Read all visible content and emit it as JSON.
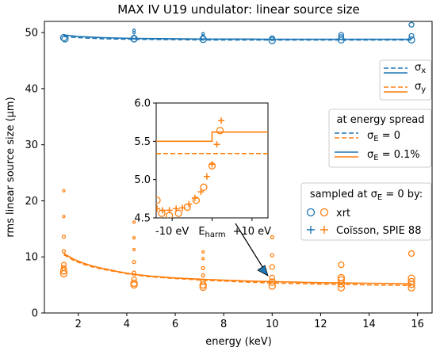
{
  "chart_data": {
    "type": "scatter",
    "title": "MAX IV U19 undulator: linear source size",
    "xlabel": "energy (keV)",
    "ylabel": "rms linear source size (μm)",
    "xlim": [
      0.6,
      16.6
    ],
    "ylim": [
      0,
      52
    ],
    "xticks": [
      2,
      4,
      6,
      8,
      10,
      12,
      14,
      16
    ],
    "yticks": [
      0,
      10,
      20,
      30,
      40,
      50
    ],
    "x_tick_labels": [
      "2",
      "4",
      "6",
      "8",
      "10",
      "12",
      "14",
      "16"
    ],
    "y_tick_labels": [
      "0",
      "10",
      "20",
      "30",
      "40",
      "50"
    ],
    "colors": {
      "sigma_x": "#1f77b4",
      "sigma_y": "#ff7f0e"
    },
    "energies_keV": [
      1.4,
      4.3,
      7.15,
      10.0,
      12.85,
      15.75
    ],
    "sigma_x_curve": {
      "x": [
        1.4,
        2.0,
        3.0,
        4.3,
        6.0,
        7.15,
        9.0,
        10.0,
        12.0,
        12.85,
        14.5,
        15.75
      ],
      "spread_0": [
        49.3,
        49.1,
        48.9,
        48.8,
        48.75,
        48.7,
        48.7,
        48.7,
        48.7,
        48.7,
        48.7,
        48.7
      ],
      "spread_0_1": [
        49.6,
        49.3,
        49.1,
        48.95,
        48.9,
        48.85,
        48.85,
        48.8,
        48.8,
        48.8,
        48.8,
        48.8
      ]
    },
    "sigma_y_curve": {
      "x": [
        1.4,
        1.8,
        2.2,
        2.6,
        3.0,
        3.5,
        4.0,
        4.3,
        5.0,
        5.5,
        6.0,
        7.15,
        8.0,
        9.0,
        10.0,
        11.0,
        12.0,
        12.85,
        14.0,
        15.0,
        15.75
      ],
      "spread_0": [
        10.4,
        9.4,
        8.7,
        8.2,
        7.8,
        7.4,
        7.0,
        6.8,
        6.45,
        6.3,
        6.15,
        5.85,
        5.7,
        5.5,
        5.35,
        5.25,
        5.15,
        5.1,
        5.0,
        4.95,
        4.9
      ],
      "spread_0_1": [
        10.6,
        9.6,
        8.9,
        8.35,
        7.95,
        7.5,
        7.1,
        6.9,
        6.55,
        6.4,
        6.25,
        6.0,
        5.85,
        5.7,
        5.6,
        5.5,
        5.4,
        5.35,
        5.3,
        5.25,
        5.2
      ]
    },
    "xrt_sigma_x_points": [
      {
        "x": 1.4,
        "y": 49.1,
        "r": 4
      },
      {
        "x": 1.45,
        "y": 48.9,
        "r": 4
      },
      {
        "x": 4.3,
        "y": 48.9,
        "r": 4
      },
      {
        "x": 4.3,
        "y": 49.2,
        "r": 2.5
      },
      {
        "x": 4.3,
        "y": 50.0,
        "r": 1.5
      },
      {
        "x": 4.3,
        "y": 50.4,
        "r": 1.5
      },
      {
        "x": 7.15,
        "y": 48.8,
        "r": 4
      },
      {
        "x": 7.15,
        "y": 49.2,
        "r": 2.5
      },
      {
        "x": 7.15,
        "y": 49.8,
        "r": 1.5
      },
      {
        "x": 10.0,
        "y": 48.6,
        "r": 4
      },
      {
        "x": 10.0,
        "y": 49.0,
        "r": 3
      },
      {
        "x": 12.85,
        "y": 48.7,
        "r": 4
      },
      {
        "x": 12.85,
        "y": 49.2,
        "r": 3
      },
      {
        "x": 12.85,
        "y": 49.6,
        "r": 3
      },
      {
        "x": 15.75,
        "y": 48.7,
        "r": 4
      },
      {
        "x": 15.75,
        "y": 49.4,
        "r": 3
      },
      {
        "x": 15.75,
        "y": 51.4,
        "r": 3
      }
    ],
    "xrt_sigma_y_points": [
      {
        "x": 1.4,
        "y": 21.8,
        "r": 1.5
      },
      {
        "x": 1.4,
        "y": 17.2,
        "r": 1.5
      },
      {
        "x": 1.4,
        "y": 13.6,
        "r": 2
      },
      {
        "x": 1.4,
        "y": 11.0,
        "r": 2
      },
      {
        "x": 1.4,
        "y": 8.6,
        "r": 3
      },
      {
        "x": 1.4,
        "y": 8.0,
        "r": 3
      },
      {
        "x": 1.4,
        "y": 7.5,
        "r": 4
      },
      {
        "x": 1.4,
        "y": 7.0,
        "r": 4
      },
      {
        "x": 4.3,
        "y": 16.2,
        "r": 1.5
      },
      {
        "x": 4.3,
        "y": 13.4,
        "r": 1.5
      },
      {
        "x": 4.3,
        "y": 11.3,
        "r": 1.5
      },
      {
        "x": 4.3,
        "y": 9.1,
        "r": 2
      },
      {
        "x": 4.3,
        "y": 7.2,
        "r": 2
      },
      {
        "x": 4.3,
        "y": 6.0,
        "r": 3
      },
      {
        "x": 4.3,
        "y": 5.3,
        "r": 4
      },
      {
        "x": 4.3,
        "y": 5.0,
        "r": 4
      },
      {
        "x": 7.15,
        "y": 10.9,
        "r": 1.5
      },
      {
        "x": 7.15,
        "y": 9.7,
        "r": 1.5
      },
      {
        "x": 7.15,
        "y": 8.0,
        "r": 2
      },
      {
        "x": 7.15,
        "y": 6.7,
        "r": 2
      },
      {
        "x": 7.15,
        "y": 5.6,
        "r": 3
      },
      {
        "x": 7.15,
        "y": 5.0,
        "r": 4
      },
      {
        "x": 7.15,
        "y": 4.6,
        "r": 4
      },
      {
        "x": 10.0,
        "y": 13.5,
        "r": 2
      },
      {
        "x": 10.0,
        "y": 10.3,
        "r": 2
      },
      {
        "x": 10.0,
        "y": 8.2,
        "r": 3
      },
      {
        "x": 10.0,
        "y": 6.3,
        "r": 3
      },
      {
        "x": 10.0,
        "y": 5.5,
        "r": 4
      },
      {
        "x": 10.0,
        "y": 4.8,
        "r": 4
      },
      {
        "x": 12.85,
        "y": 8.6,
        "r": 3.5
      },
      {
        "x": 12.85,
        "y": 6.3,
        "r": 4
      },
      {
        "x": 12.85,
        "y": 5.9,
        "r": 4
      },
      {
        "x": 12.85,
        "y": 5.2,
        "r": 4
      },
      {
        "x": 12.85,
        "y": 4.5,
        "r": 4
      },
      {
        "x": 15.75,
        "y": 10.6,
        "r": 3.5
      },
      {
        "x": 15.75,
        "y": 6.2,
        "r": 4
      },
      {
        "x": 15.75,
        "y": 5.6,
        "r": 4
      },
      {
        "x": 15.75,
        "y": 5.1,
        "r": 4
      },
      {
        "x": 15.75,
        "y": 4.5,
        "r": 4
      }
    ],
    "legend": {
      "series": [
        {
          "label": "σ",
          "sub": "x",
          "color": "#1f77b4"
        },
        {
          "label": "σ",
          "sub": "y",
          "color": "#ff7f0e"
        }
      ],
      "energy_spread_title": "at energy spread",
      "energy_spread_entries": [
        {
          "text": "σ",
          "sub": "E",
          "suffix": " = 0",
          "style": "dashed"
        },
        {
          "text": "σ",
          "sub": "E",
          "suffix": " = 0.1%",
          "style": "solid"
        }
      ],
      "sampled_title": "sampled at σ",
      "sampled_title_sub": "E",
      "sampled_title_suffix": " = 0 by:",
      "sampled_entries": [
        {
          "text": "xrt",
          "marker": "circle"
        },
        {
          "text": "Coïsson, SPIE 88",
          "marker": "plus"
        }
      ]
    },
    "inset": {
      "ylim": [
        4.5,
        6.0
      ],
      "xlim": [
        -14,
        14
      ],
      "yticks": [
        4.5,
        5.0,
        5.5,
        6.0
      ],
      "y_tick_labels": [
        "4.5",
        "5.0",
        "5.5",
        "6.0"
      ],
      "x_tick_labels": [
        "-10 eV",
        "E",
        "+10 eV"
      ],
      "x_tick_center_sub": "harm",
      "xticks": [
        -10,
        0,
        10
      ],
      "line_spread_0": 5.34,
      "line_spread_0_1_low": 5.5,
      "line_spread_0_1_high": 5.62,
      "line_step_x": 0,
      "xrt_points": [
        {
          "x": -13.8,
          "y": 4.73,
          "r": 4
        },
        {
          "x": -12.6,
          "y": 4.56,
          "r": 4
        },
        {
          "x": -10.7,
          "y": 4.53,
          "r": 4
        },
        {
          "x": -8.4,
          "y": 4.56,
          "r": 4
        },
        {
          "x": -6.2,
          "y": 4.64,
          "r": 4
        },
        {
          "x": -4.0,
          "y": 4.73,
          "r": 4
        },
        {
          "x": -2.1,
          "y": 4.9,
          "r": 4
        },
        {
          "x": 0.0,
          "y": 5.18,
          "r": 4
        },
        {
          "x": 2.0,
          "y": 5.64,
          "r": 4
        }
      ],
      "coisson_points": [
        {
          "x": -13.8,
          "y": 4.62
        },
        {
          "x": -12.4,
          "y": 4.6
        },
        {
          "x": -10.7,
          "y": 4.6
        },
        {
          "x": -9.0,
          "y": 4.62
        },
        {
          "x": -7.4,
          "y": 4.63
        },
        {
          "x": -5.8,
          "y": 4.68
        },
        {
          "x": -4.3,
          "y": 4.76
        },
        {
          "x": -2.8,
          "y": 4.84
        },
        {
          "x": -1.3,
          "y": 5.04
        },
        {
          "x": 0.0,
          "y": 5.2
        },
        {
          "x": 1.2,
          "y": 5.46
        },
        {
          "x": 2.3,
          "y": 5.77
        }
      ]
    }
  }
}
